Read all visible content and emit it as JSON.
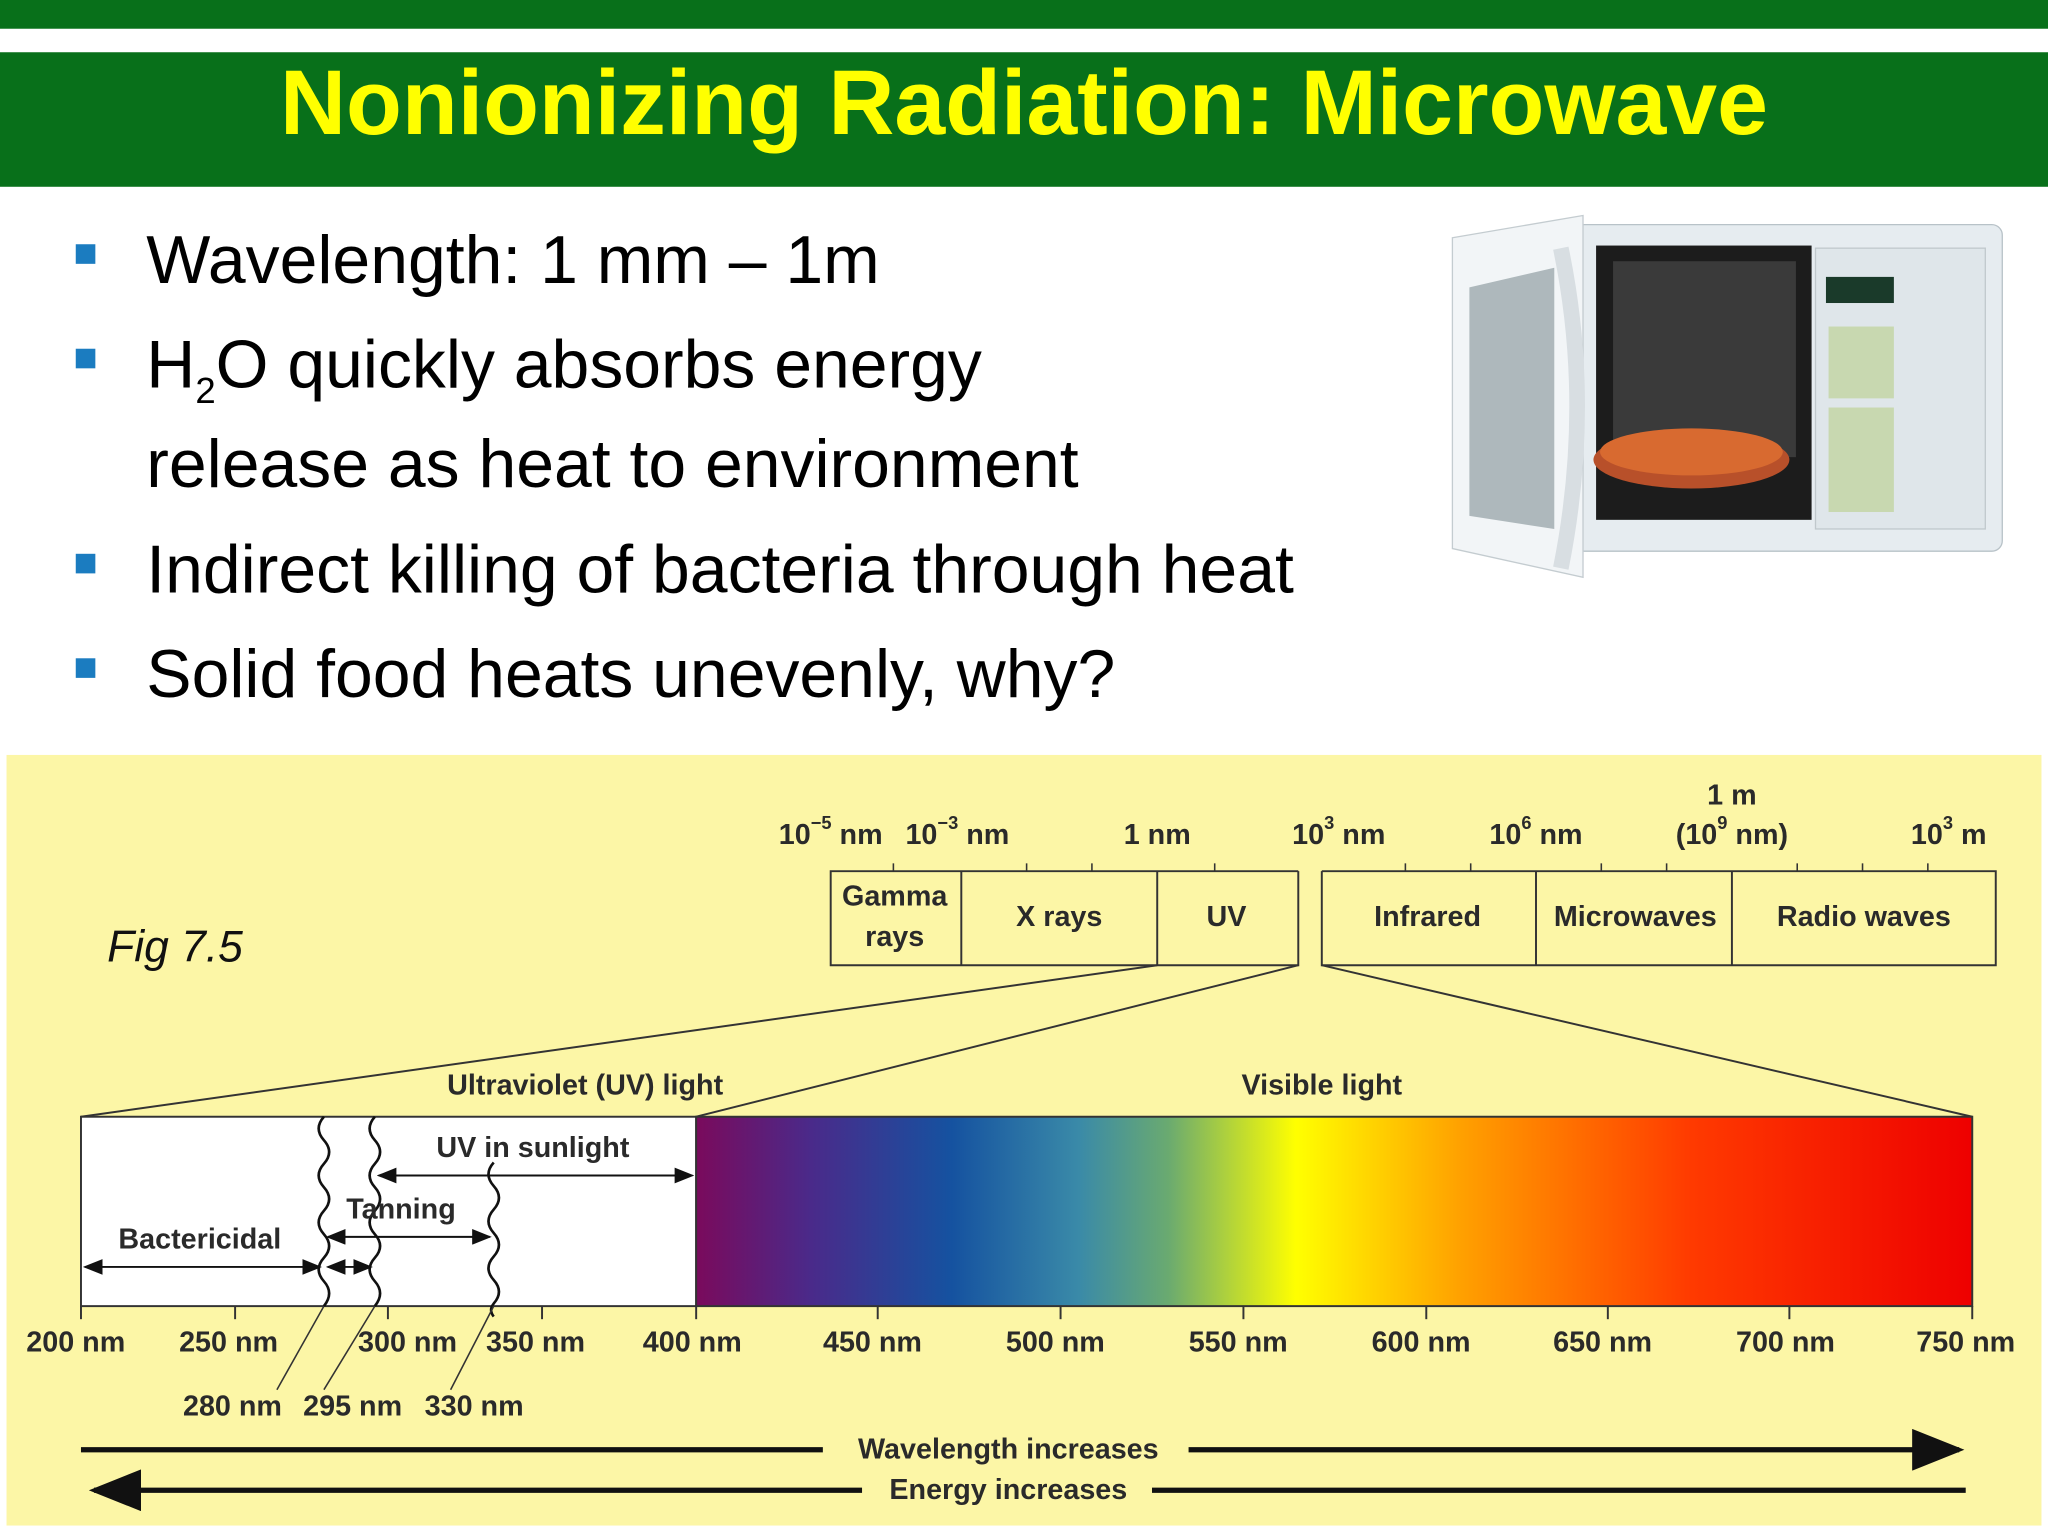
{
  "header": {
    "title": "Nonionizing Radiation: Microwave"
  },
  "bullets": [
    {
      "text": "Wavelength: 1 mm – 1m"
    },
    {
      "text": "H",
      "subscript": "2",
      "text_after": "O quickly absorbs energy",
      "line2": "release as heat to environment"
    },
    {
      "text": "Indirect killing of bacteria through heat"
    },
    {
      "text": "Solid food heats unevenly, why?"
    }
  ],
  "figure": {
    "caption": "Fig 7.5",
    "scale_labels": [
      {
        "base": "10",
        "exp": "−5",
        "unit": " nm"
      },
      {
        "base": "10",
        "exp": "−3",
        "unit": " nm"
      },
      {
        "base": "1 nm"
      },
      {
        "base": "10",
        "exp": "3",
        "unit": " nm"
      },
      {
        "base": "10",
        "exp": "6",
        "unit": " nm"
      },
      {
        "top": "1 m",
        "base": "(10",
        "exp": "9",
        "unit": " nm)"
      },
      {
        "base": "10",
        "exp": "3",
        "unit": " m"
      }
    ],
    "bands": [
      [
        "Gamma",
        "rays"
      ],
      [
        "X rays"
      ],
      [
        "UV"
      ],
      [
        "Infrared"
      ],
      [
        "Microwaves"
      ],
      [
        "Radio waves"
      ]
    ],
    "regions": {
      "uv": "Ultraviolet (UV) light",
      "visible": "Visible light"
    },
    "uv_ranges": {
      "sunlight": "UV in sunlight",
      "tanning": "Tanning",
      "bactericidal": "Bactericidal"
    },
    "wavelength_ticks": [
      "200 nm",
      "250 nm",
      "300 nm",
      "350 nm",
      "400 nm",
      "450 nm",
      "500 nm",
      "550 nm",
      "600 nm",
      "650 nm",
      "700 nm",
      "750 nm"
    ],
    "boundary_labels": [
      "280 nm",
      "295 nm",
      "330 nm"
    ],
    "arrows": {
      "wavelength": "Wavelength increases",
      "energy": "Energy increases"
    }
  }
}
